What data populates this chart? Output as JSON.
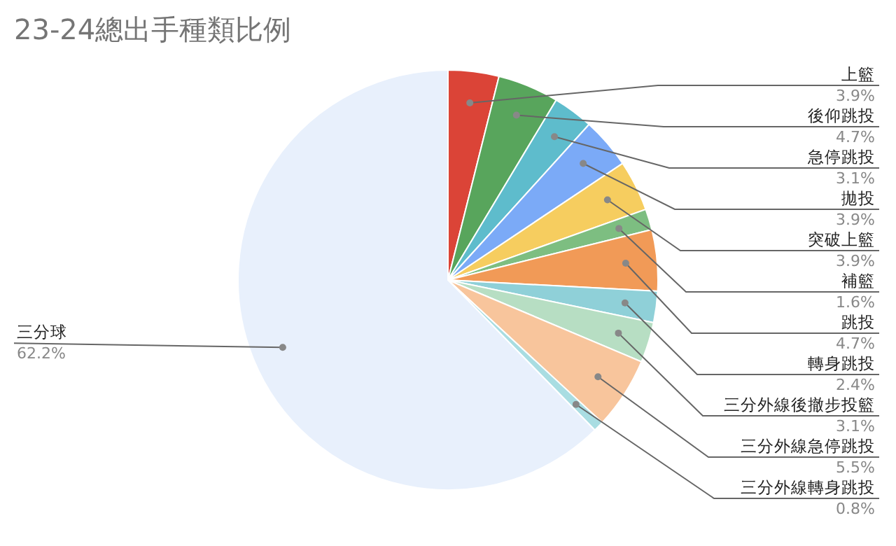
{
  "chart_data": {
    "type": "pie",
    "title": "23-24總出手種類比例",
    "categories": [
      "上籃",
      "後仰跳投",
      "急停跳投",
      "拋投",
      "突破上籃",
      "補籃",
      "跳投",
      "轉身跳投",
      "三分外線後撤步投籃",
      "三分外線急停跳投",
      "三分外線轉身跳投",
      "三分球"
    ],
    "values": [
      3.9,
      4.7,
      3.1,
      3.9,
      3.9,
      1.6,
      4.7,
      2.4,
      3.1,
      5.5,
      0.8,
      62.2
    ],
    "value_labels": [
      "3.9%",
      "4.7%",
      "3.1%",
      "3.9%",
      "3.9%",
      "1.6%",
      "4.7%",
      "2.4%",
      "3.1%",
      "5.5%",
      "0.8%",
      "62.2%"
    ],
    "colors": [
      "#db4437",
      "#58a55c",
      "#5ebccc",
      "#7baaf7",
      "#f6cd5f",
      "#7dbe81",
      "#f19a57",
      "#8fd0d8",
      "#b7dec3",
      "#f8c59c",
      "#a9dde2",
      "#e8f0fc"
    ]
  }
}
